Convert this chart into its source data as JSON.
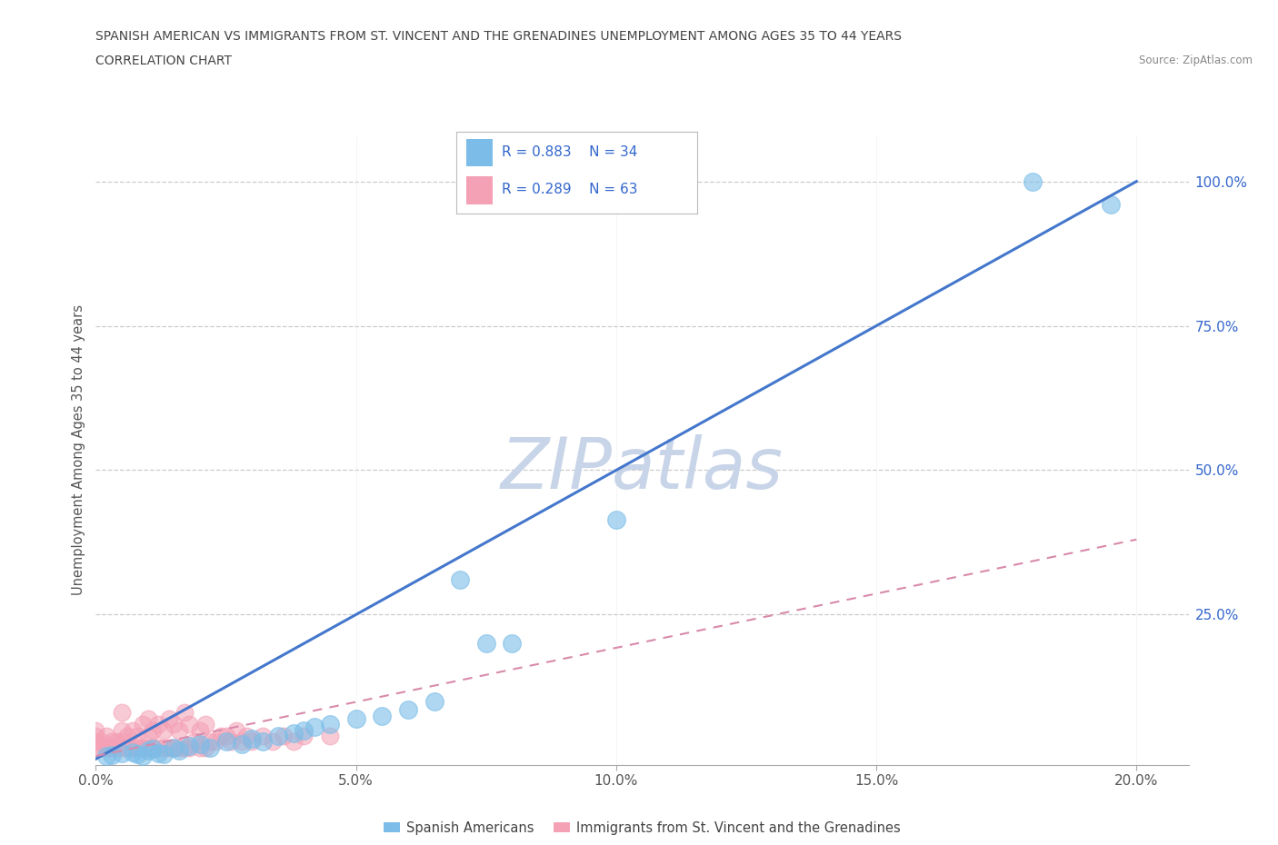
{
  "title_line1": "SPANISH AMERICAN VS IMMIGRANTS FROM ST. VINCENT AND THE GRENADINES UNEMPLOYMENT AMONG AGES 35 TO 44 YEARS",
  "title_line2": "CORRELATION CHART",
  "source_text": "Source: ZipAtlas.com",
  "ylabel": "Unemployment Among Ages 35 to 44 years",
  "xlim": [
    0.0,
    0.21
  ],
  "ylim": [
    -0.01,
    1.08
  ],
  "xtick_labels": [
    "0.0%",
    "5.0%",
    "10.0%",
    "15.0%",
    "20.0%"
  ],
  "xtick_values": [
    0.0,
    0.05,
    0.1,
    0.15,
    0.2
  ],
  "ytick_labels": [
    "25.0%",
    "50.0%",
    "75.0%",
    "100.0%"
  ],
  "ytick_values": [
    0.25,
    0.5,
    0.75,
    1.0
  ],
  "blue_R": 0.883,
  "blue_N": 34,
  "pink_R": 0.289,
  "pink_N": 63,
  "blue_color": "#7bbde8",
  "pink_color": "#f4a0b5",
  "blue_line_color": "#4477cc",
  "pink_line_color": "#d88aaa",
  "watermark_color": "#c8d4e8",
  "grid_color": "#cccccc",
  "title_color": "#444444",
  "legend_text_color": "#3366cc",
  "blue_scatter_x": [
    0.002,
    0.003,
    0.005,
    0.007,
    0.008,
    0.009,
    0.01,
    0.011,
    0.012,
    0.013,
    0.015,
    0.016,
    0.018,
    0.02,
    0.022,
    0.025,
    0.028,
    0.03,
    0.032,
    0.035,
    0.038,
    0.04,
    0.042,
    0.045,
    0.05,
    0.055,
    0.06,
    0.065,
    0.07,
    0.075,
    0.08,
    0.1,
    0.18,
    0.195
  ],
  "blue_scatter_y": [
    0.005,
    0.007,
    0.01,
    0.012,
    0.008,
    0.005,
    0.015,
    0.018,
    0.01,
    0.008,
    0.02,
    0.015,
    0.022,
    0.025,
    0.02,
    0.03,
    0.025,
    0.035,
    0.03,
    0.04,
    0.045,
    0.05,
    0.055,
    0.06,
    0.07,
    0.075,
    0.085,
    0.1,
    0.31,
    0.2,
    0.2,
    0.415,
    1.0,
    0.96
  ],
  "pink_scatter_x": [
    0.0,
    0.0,
    0.0,
    0.0,
    0.001,
    0.001,
    0.002,
    0.002,
    0.003,
    0.003,
    0.004,
    0.004,
    0.005,
    0.005,
    0.005,
    0.005,
    0.006,
    0.006,
    0.007,
    0.007,
    0.008,
    0.008,
    0.009,
    0.009,
    0.01,
    0.01,
    0.01,
    0.011,
    0.011,
    0.012,
    0.012,
    0.013,
    0.013,
    0.014,
    0.014,
    0.015,
    0.015,
    0.016,
    0.016,
    0.017,
    0.017,
    0.018,
    0.018,
    0.019,
    0.02,
    0.02,
    0.021,
    0.021,
    0.022,
    0.023,
    0.024,
    0.025,
    0.026,
    0.027,
    0.028,
    0.029,
    0.03,
    0.032,
    0.034,
    0.036,
    0.038,
    0.04,
    0.045
  ],
  "pink_scatter_y": [
    0.02,
    0.03,
    0.04,
    0.05,
    0.02,
    0.03,
    0.02,
    0.04,
    0.02,
    0.03,
    0.02,
    0.03,
    0.02,
    0.03,
    0.05,
    0.08,
    0.02,
    0.04,
    0.02,
    0.05,
    0.02,
    0.04,
    0.02,
    0.06,
    0.02,
    0.04,
    0.07,
    0.02,
    0.05,
    0.02,
    0.06,
    0.02,
    0.05,
    0.02,
    0.07,
    0.02,
    0.06,
    0.02,
    0.05,
    0.02,
    0.08,
    0.02,
    0.06,
    0.03,
    0.02,
    0.05,
    0.02,
    0.06,
    0.03,
    0.03,
    0.04,
    0.04,
    0.03,
    0.05,
    0.03,
    0.04,
    0.03,
    0.04,
    0.03,
    0.04,
    0.03,
    0.04,
    0.04
  ],
  "blue_line_x": [
    0.0,
    0.2
  ],
  "blue_line_y": [
    0.0,
    1.0
  ],
  "pink_line_x": [
    0.0,
    0.2
  ],
  "pink_line_y": [
    0.005,
    0.38
  ]
}
